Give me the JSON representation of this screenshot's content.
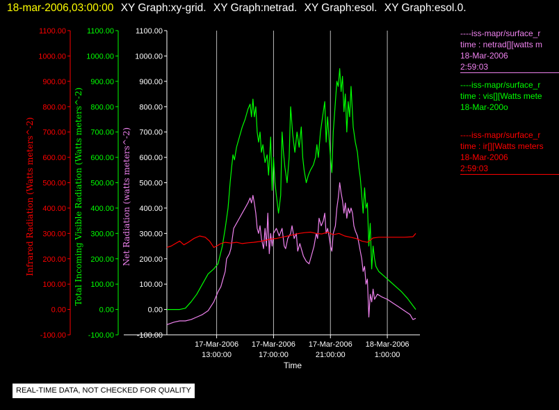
{
  "header": {
    "timestamp": "18-mar-2006,03:00:00",
    "graphs": [
      "XY Graph:xy-grid.",
      "XY Graph:netrad.",
      "XY Graph:esol.",
      "XY Graph:esol.0."
    ]
  },
  "notice": "REAL-TIME DATA, NOT CHECKED FOR QUALITY",
  "colors": {
    "ir": "#ff0000",
    "vis": "#00ff00",
    "net": "#ee82ee",
    "header_time": "#ffff00",
    "text": "#ffffff"
  },
  "legend": [
    {
      "color": "#ee82ee",
      "lines": [
        "----iss-mapr/surface_r",
        "time : netrad[][watts m",
        "18-Mar-2006",
        "2:59:03"
      ]
    },
    {
      "color": "#00ff00",
      "lines": [
        "----iss-mapr/surface_r",
        "time : vis[][Watts mete",
        "18-Mar-200o"
      ]
    },
    {
      "color": "#ff0000",
      "lines": [
        "----iss-mapr/surface_r",
        "time : ir[][Watts meters",
        "18-Mar-2006",
        "2:59:03"
      ]
    }
  ],
  "chart_data": {
    "type": "line",
    "xlabel": "Time",
    "x_unit": "hours since 17-Mar-2006 13:00:00",
    "xlim": [
      -3.5,
      14
    ],
    "x_ticks": [
      {
        "x": 0,
        "label": [
          "17-Mar-2006",
          "13:00:00"
        ]
      },
      {
        "x": 4,
        "label": [
          "17-Mar-2006",
          "17:00:00"
        ]
      },
      {
        "x": 8,
        "label": [
          "17-Mar-2006",
          "21:00:00"
        ]
      },
      {
        "x": 12,
        "label": [
          "18-Mar-2006",
          "1:00:00"
        ]
      }
    ],
    "y_ticks": [
      -100,
      0,
      100,
      200,
      300,
      400,
      500,
      600,
      700,
      800,
      900,
      1000,
      1100
    ],
    "y_axes": [
      {
        "label": "Infrared Radiation (Watts meters^-2)",
        "color": "#ff0000",
        "ylim": [
          -100,
          1100
        ]
      },
      {
        "label": "Total Incoming Visible Radiation (Watts meters^-2)",
        "color": "#00ff00",
        "ylim": [
          -100,
          1100
        ]
      },
      {
        "label": "Net Radiation (watts meters^-2)",
        "color": "#ee82ee",
        "ylim": [
          -100,
          1100
        ]
      }
    ],
    "grid": "vertical lines at x ticks",
    "series": [
      {
        "color": "#00ff00",
        "points": [
          [
            -3.5,
            0
          ],
          [
            -2.6,
            0
          ],
          [
            -2.2,
            5
          ],
          [
            -1.8,
            30
          ],
          [
            -1.4,
            60
          ],
          [
            -1.0,
            100
          ],
          [
            -0.6,
            140
          ],
          [
            -0.2,
            160
          ],
          [
            0.1,
            180
          ],
          [
            0.4,
            250
          ],
          [
            0.6,
            320
          ],
          [
            0.8,
            400
          ],
          [
            0.95,
            500
          ],
          [
            1.05,
            560
          ],
          [
            1.15,
            610
          ],
          [
            1.25,
            590
          ],
          [
            1.4,
            640
          ],
          [
            1.6,
            680
          ],
          [
            1.8,
            720
          ],
          [
            2.0,
            750
          ],
          [
            2.2,
            790
          ],
          [
            2.35,
            810
          ],
          [
            2.45,
            760
          ],
          [
            2.55,
            830
          ],
          [
            2.65,
            760
          ],
          [
            2.75,
            800
          ],
          [
            2.85,
            700
          ],
          [
            2.95,
            660
          ],
          [
            3.05,
            700
          ],
          [
            3.15,
            620
          ],
          [
            3.25,
            650
          ],
          [
            3.4,
            580
          ],
          [
            3.55,
            610
          ],
          [
            3.65,
            530
          ],
          [
            3.8,
            680
          ],
          [
            3.9,
            470
          ],
          [
            4.0,
            600
          ],
          [
            4.1,
            500
          ],
          [
            4.2,
            450
          ],
          [
            4.35,
            380
          ],
          [
            4.5,
            450
          ],
          [
            4.6,
            700
          ],
          [
            4.7,
            620
          ],
          [
            4.8,
            560
          ],
          [
            4.95,
            500
          ],
          [
            5.1,
            600
          ],
          [
            5.2,
            800
          ],
          [
            5.35,
            690
          ],
          [
            5.5,
            620
          ],
          [
            5.65,
            700
          ],
          [
            5.8,
            640
          ],
          [
            5.95,
            720
          ],
          [
            6.05,
            600
          ],
          [
            6.15,
            550
          ],
          [
            6.3,
            500
          ],
          [
            6.45,
            530
          ],
          [
            6.6,
            550
          ],
          [
            6.8,
            570
          ],
          [
            6.95,
            600
          ],
          [
            7.05,
            650
          ],
          [
            7.15,
            600
          ],
          [
            7.3,
            700
          ],
          [
            7.5,
            780
          ],
          [
            7.6,
            820
          ],
          [
            7.7,
            660
          ],
          [
            7.8,
            760
          ],
          [
            7.9,
            680
          ],
          [
            8.0,
            600
          ],
          [
            8.1,
            540
          ],
          [
            8.2,
            700
          ],
          [
            8.3,
            780
          ],
          [
            8.45,
            900
          ],
          [
            8.55,
            880
          ],
          [
            8.65,
            950
          ],
          [
            8.75,
            860
          ],
          [
            8.85,
            920
          ],
          [
            8.95,
            780
          ],
          [
            9.05,
            850
          ],
          [
            9.15,
            700
          ],
          [
            9.25,
            820
          ],
          [
            9.35,
            760
          ],
          [
            9.45,
            880
          ],
          [
            9.6,
            720
          ],
          [
            9.75,
            660
          ],
          [
            9.9,
            620
          ],
          [
            10.0,
            560
          ],
          [
            10.1,
            520
          ],
          [
            10.2,
            450
          ],
          [
            10.3,
            380
          ],
          [
            10.4,
            480
          ],
          [
            10.5,
            400
          ],
          [
            10.6,
            420
          ],
          [
            10.7,
            250
          ],
          [
            10.8,
            340
          ],
          [
            10.9,
            160
          ],
          [
            11.0,
            250
          ],
          [
            11.1,
            200
          ],
          [
            11.2,
            170
          ],
          [
            11.4,
            150
          ],
          [
            11.8,
            130
          ],
          [
            12.2,
            110
          ],
          [
            12.6,
            90
          ],
          [
            13.0,
            70
          ],
          [
            13.4,
            45
          ],
          [
            13.8,
            15
          ],
          [
            14.0,
            0
          ]
        ]
      },
      {
        "color": "#ee82ee",
        "points": [
          [
            -3.5,
            -60
          ],
          [
            -3.0,
            -50
          ],
          [
            -2.6,
            -45
          ],
          [
            -2.2,
            -45
          ],
          [
            -1.8,
            -40
          ],
          [
            -1.4,
            -30
          ],
          [
            -1.0,
            -20
          ],
          [
            -0.6,
            -5
          ],
          [
            -0.2,
            30
          ],
          [
            0.1,
            70
          ],
          [
            0.3,
            90
          ],
          [
            0.5,
            130
          ],
          [
            0.6,
            150
          ],
          [
            0.7,
            200
          ],
          [
            0.8,
            210
          ],
          [
            0.9,
            220
          ],
          [
            1.0,
            240
          ],
          [
            1.2,
            320
          ],
          [
            1.4,
            340
          ],
          [
            1.6,
            360
          ],
          [
            1.8,
            380
          ],
          [
            2.0,
            400
          ],
          [
            2.2,
            420
          ],
          [
            2.35,
            440
          ],
          [
            2.45,
            420
          ],
          [
            2.55,
            450
          ],
          [
            2.65,
            420
          ],
          [
            2.75,
            380
          ],
          [
            2.85,
            320
          ],
          [
            2.95,
            300
          ],
          [
            3.05,
            330
          ],
          [
            3.15,
            280
          ],
          [
            3.3,
            240
          ],
          [
            3.4,
            320
          ],
          [
            3.5,
            250
          ],
          [
            3.6,
            380
          ],
          [
            3.7,
            220
          ],
          [
            3.8,
            300
          ],
          [
            3.9,
            250
          ],
          [
            4.0,
            300
          ],
          [
            4.2,
            320
          ],
          [
            4.4,
            290
          ],
          [
            4.6,
            320
          ],
          [
            4.75,
            250
          ],
          [
            4.85,
            240
          ],
          [
            5.0,
            280
          ],
          [
            5.2,
            300
          ],
          [
            5.3,
            330
          ],
          [
            5.45,
            280
          ],
          [
            5.6,
            300
          ],
          [
            5.7,
            230
          ],
          [
            5.85,
            260
          ],
          [
            5.95,
            240
          ],
          [
            6.1,
            210
          ],
          [
            6.3,
            190
          ],
          [
            6.5,
            180
          ],
          [
            6.7,
            220
          ],
          [
            6.85,
            250
          ],
          [
            7.0,
            300
          ],
          [
            7.1,
            280
          ],
          [
            7.2,
            360
          ],
          [
            7.35,
            330
          ],
          [
            7.5,
            350
          ],
          [
            7.6,
            380
          ],
          [
            7.7,
            300
          ],
          [
            7.8,
            320
          ],
          [
            7.9,
            290
          ],
          [
            8.0,
            250
          ],
          [
            8.1,
            230
          ],
          [
            8.2,
            300
          ],
          [
            8.35,
            330
          ],
          [
            8.45,
            400
          ],
          [
            8.55,
            440
          ],
          [
            8.65,
            500
          ],
          [
            8.75,
            460
          ],
          [
            8.85,
            430
          ],
          [
            8.95,
            380
          ],
          [
            9.05,
            420
          ],
          [
            9.15,
            360
          ],
          [
            9.25,
            400
          ],
          [
            9.35,
            380
          ],
          [
            9.45,
            400
          ],
          [
            9.55,
            380
          ],
          [
            9.65,
            330
          ],
          [
            9.75,
            310
          ],
          [
            9.9,
            290
          ],
          [
            10.0,
            260
          ],
          [
            10.1,
            230
          ],
          [
            10.2,
            200
          ],
          [
            10.3,
            150
          ],
          [
            10.4,
            170
          ],
          [
            10.5,
            100
          ],
          [
            10.6,
            120
          ],
          [
            10.7,
            -30
          ],
          [
            10.8,
            60
          ],
          [
            10.9,
            30
          ],
          [
            11.0,
            80
          ],
          [
            11.1,
            40
          ],
          [
            11.3,
            60
          ],
          [
            11.6,
            50
          ],
          [
            12.0,
            40
          ],
          [
            12.4,
            25
          ],
          [
            12.8,
            10
          ],
          [
            13.2,
            -5
          ],
          [
            13.6,
            -20
          ],
          [
            13.8,
            -40
          ],
          [
            14.0,
            -35
          ]
        ]
      },
      {
        "color": "#ff0000",
        "points": [
          [
            -3.5,
            245
          ],
          [
            -3.2,
            250
          ],
          [
            -2.9,
            260
          ],
          [
            -2.6,
            270
          ],
          [
            -2.3,
            255
          ],
          [
            -2.0,
            265
          ],
          [
            -1.6,
            280
          ],
          [
            -1.2,
            290
          ],
          [
            -0.8,
            285
          ],
          [
            -0.5,
            270
          ],
          [
            -0.2,
            245
          ],
          [
            0.0,
            250
          ],
          [
            0.3,
            260
          ],
          [
            0.6,
            265
          ],
          [
            1.0,
            262
          ],
          [
            1.4,
            265
          ],
          [
            1.8,
            260
          ],
          [
            2.2,
            263
          ],
          [
            2.6,
            265
          ],
          [
            3.0,
            268
          ],
          [
            3.4,
            272
          ],
          [
            3.8,
            278
          ],
          [
            4.2,
            280
          ],
          [
            4.6,
            285
          ],
          [
            5.0,
            290
          ],
          [
            5.4,
            295
          ],
          [
            5.8,
            300
          ],
          [
            6.2,
            303
          ],
          [
            6.6,
            305
          ],
          [
            7.0,
            300
          ],
          [
            7.4,
            298
          ],
          [
            7.8,
            305
          ],
          [
            8.2,
            295
          ],
          [
            8.6,
            300
          ],
          [
            9.0,
            290
          ],
          [
            9.4,
            285
          ],
          [
            9.8,
            280
          ],
          [
            10.2,
            270
          ],
          [
            10.6,
            265
          ],
          [
            11.0,
            282
          ],
          [
            11.4,
            285
          ],
          [
            12.0,
            285
          ],
          [
            12.6,
            285
          ],
          [
            13.2,
            285
          ],
          [
            13.8,
            287
          ],
          [
            14.0,
            300
          ]
        ]
      }
    ]
  }
}
